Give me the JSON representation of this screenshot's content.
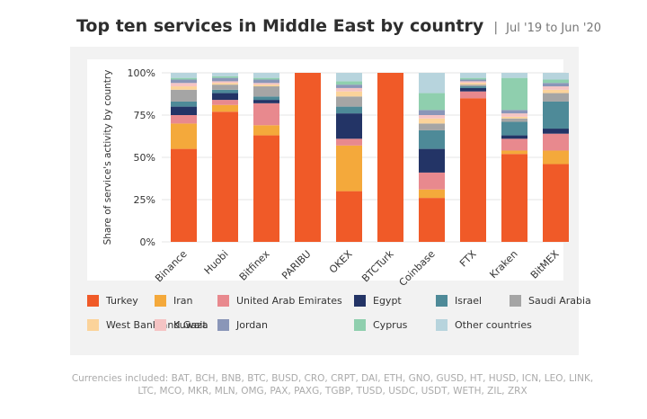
{
  "header": {
    "title": "Top ten services in Middle East by country",
    "separator": "|",
    "subtitle": "Jul '19 to Jun '20"
  },
  "footer": {
    "line1": "Currencies included: BAT, BCH, BNB, BTC, BUSD, CRO, CRPT, DAI, ETH, GNO, GUSD, HT, HUSD, ICN, LEO, LINK,",
    "line2": "LTC, MCO, MKR, MLN, OMG, PAX, PAXG, TGBP, TUSD, USDC, USDT, WETH, ZIL, ZRX"
  },
  "chart_data": {
    "type": "bar",
    "stacked": true,
    "title": "Top ten services in Middle East by country",
    "subtitle": "Jul '19 to Jun '20",
    "xlabel": "",
    "ylabel": "Share of service's activity by country",
    "ylim": [
      0,
      100
    ],
    "yticks": [
      "0%",
      "25%",
      "50%",
      "75%",
      "100%"
    ],
    "grid": true,
    "legend_position": "bottom",
    "categories": [
      "Binance",
      "Huobi",
      "Bitfinex",
      "PARIBU",
      "OKEX",
      "BTCTurk",
      "Coinbase",
      "FTX",
      "Kraken",
      "BitMEX"
    ],
    "series": [
      {
        "name": "Turkey",
        "color": "#f05a28",
        "values": [
          55,
          77,
          63,
          100,
          30,
          100,
          26,
          85,
          52,
          46
        ]
      },
      {
        "name": "Iran",
        "color": "#f4a93b",
        "values": [
          15,
          4,
          6,
          0,
          27,
          0,
          5,
          0,
          2,
          8
        ]
      },
      {
        "name": "United Arab Emirates",
        "color": "#e8898e",
        "values": [
          5,
          3,
          13,
          0,
          4,
          0,
          10,
          4,
          7,
          10
        ]
      },
      {
        "name": "Egypt",
        "color": "#233466",
        "values": [
          5,
          4,
          2,
          0,
          15,
          0,
          14,
          2,
          2,
          3
        ]
      },
      {
        "name": "Israel",
        "color": "#4e8a98",
        "values": [
          3,
          2,
          2,
          0,
          4,
          0,
          11,
          1,
          8,
          16
        ]
      },
      {
        "name": "Saudi Arabia",
        "color": "#a5a5a5",
        "values": [
          7,
          3,
          6,
          0,
          6,
          0,
          4,
          1,
          2,
          5
        ]
      },
      {
        "name": "West Bank and Gaza",
        "color": "#fbd39a",
        "values": [
          2,
          1,
          1,
          0,
          3,
          0,
          3,
          1,
          1,
          2
        ]
      },
      {
        "name": "Kuwait",
        "color": "#f5c4c4",
        "values": [
          2,
          1,
          1,
          0,
          2,
          0,
          2,
          1,
          2,
          2
        ]
      },
      {
        "name": "Jordan",
        "color": "#8a96b8",
        "values": [
          2,
          2,
          2,
          0,
          2,
          0,
          3,
          1,
          2,
          2
        ]
      },
      {
        "name": "Cyprus",
        "color": "#8fcfae",
        "values": [
          1,
          1,
          1,
          0,
          2,
          0,
          10,
          1,
          19,
          2
        ]
      },
      {
        "name": "Other countries",
        "color": "#b7d4dd",
        "values": [
          3,
          2,
          3,
          0,
          5,
          0,
          12,
          3,
          3,
          4
        ]
      }
    ]
  }
}
